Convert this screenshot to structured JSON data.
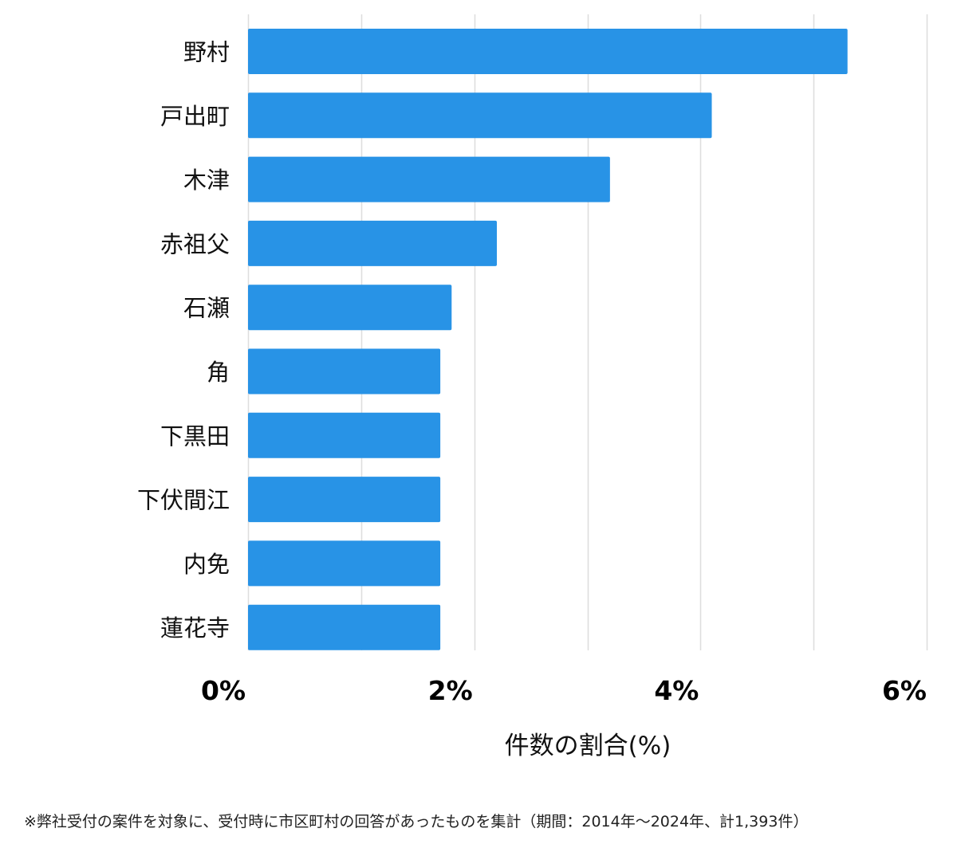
{
  "chart_data": {
    "type": "bar",
    "orientation": "horizontal",
    "categories": [
      "野村",
      "戸出町",
      "木津",
      "赤祖父",
      "石瀬",
      "角",
      "下黒田",
      "下伏間江",
      "内免",
      "蓮花寺"
    ],
    "values": [
      5.3,
      4.1,
      3.2,
      2.2,
      1.8,
      1.7,
      1.7,
      1.7,
      1.7,
      1.7
    ],
    "x_ticks": [
      0,
      2,
      4,
      6
    ],
    "tick_labels": [
      "0%",
      "2%",
      "4%",
      "6%"
    ],
    "xlim": [
      0,
      6
    ],
    "gridline_step": 1,
    "xlabel": "件数の割合(%)",
    "ylabel": "",
    "title": "",
    "grid": true,
    "bar_color": "#2893e6",
    "grid_color": "#dddddd"
  },
  "footnote": "※弊社受付の案件を対象に、受付時に市区町村の回答があったものを集計（期間：2014年～2024年、計1,393件）"
}
